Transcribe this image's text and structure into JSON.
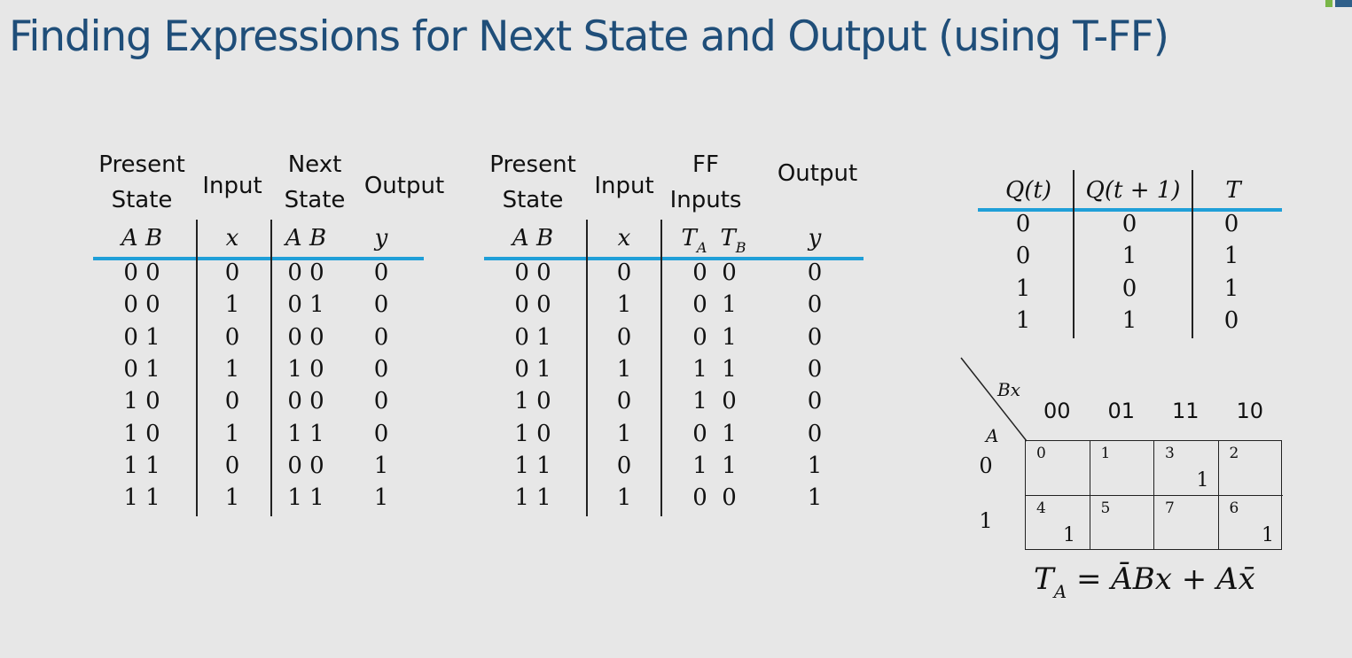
{
  "title": "Finding Expressions for Next State and Output (using T-FF)",
  "table1": {
    "headers": {
      "present_line1": "Present",
      "present_line2": "State",
      "input": "Input",
      "next_line1": "Next",
      "next_line2": "State",
      "output": "Output"
    },
    "sub": {
      "present": "A B",
      "input": "x",
      "next": "A B",
      "output": "y"
    },
    "rows": [
      [
        "0 0",
        "0",
        "0 0",
        "0"
      ],
      [
        "0 0",
        "1",
        "0 1",
        "0"
      ],
      [
        "0 1",
        "0",
        "0 0",
        "0"
      ],
      [
        "0 1",
        "1",
        "1 0",
        "0"
      ],
      [
        "1 0",
        "0",
        "0 0",
        "0"
      ],
      [
        "1 0",
        "1",
        "1 1",
        "0"
      ],
      [
        "1 1",
        "0",
        "0 0",
        "1"
      ],
      [
        "1 1",
        "1",
        "1 1",
        "1"
      ]
    ]
  },
  "table2": {
    "headers": {
      "present_line1": "Present",
      "present_line2": "State",
      "input": "Input",
      "ff_line1": "FF",
      "ff_line2": "Inputs",
      "output": "Output"
    },
    "sub": {
      "present": "A B",
      "input": "x",
      "ta": "T",
      "ta_sub": "A",
      "tb": "T",
      "tb_sub": "B",
      "output": "y"
    },
    "rows": [
      [
        "0 0",
        "0",
        "0  0",
        "0"
      ],
      [
        "0 0",
        "1",
        "0  1",
        "0"
      ],
      [
        "0 1",
        "0",
        "0  1",
        "0"
      ],
      [
        "0 1",
        "1",
        "1  1",
        "0"
      ],
      [
        "1 0",
        "0",
        "1  0",
        "0"
      ],
      [
        "1 0",
        "1",
        "0  1",
        "0"
      ],
      [
        "1 1",
        "0",
        "1  1",
        "1"
      ],
      [
        "1 1",
        "1",
        "0  0",
        "1"
      ]
    ]
  },
  "excitation": {
    "headers": [
      "Q(t)",
      "Q(t + 1)",
      "T"
    ],
    "rows": [
      [
        "0",
        "0",
        "0"
      ],
      [
        "0",
        "1",
        "1"
      ],
      [
        "1",
        "0",
        "1"
      ],
      [
        "1",
        "1",
        "0"
      ]
    ]
  },
  "kmap": {
    "col_var": "Bx",
    "row_var": "A",
    "col_labels": [
      "00",
      "01",
      "11",
      "10"
    ],
    "row_labels": [
      "0",
      "1"
    ],
    "indices": [
      [
        "0",
        "1",
        "3",
        "2"
      ],
      [
        "4",
        "5",
        "7",
        "6"
      ]
    ],
    "values": [
      [
        "",
        "",
        "1",
        ""
      ],
      [
        "1",
        "",
        "",
        "1"
      ]
    ]
  },
  "equation": {
    "lhs": "T",
    "lhs_sub": "A",
    "rhs_text": "= ĀBx + Ax̄"
  }
}
